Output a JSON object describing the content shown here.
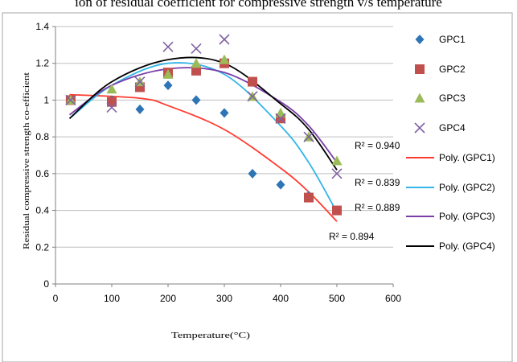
{
  "page": {
    "title": "ion of residual coefficient for compressive strength v/s temperature"
  },
  "chart_data": {
    "type": "scatter",
    "title": "",
    "xlabel": "Temperature(°C)",
    "ylabel": "Residual compressive strength co-efficient",
    "xlim": [
      0,
      600
    ],
    "ylim": [
      0,
      1.4
    ],
    "xticks": [
      0,
      100,
      200,
      300,
      400,
      500,
      600
    ],
    "yticks": [
      0,
      0.2,
      0.4,
      0.6,
      0.8,
      1,
      1.2,
      1.4
    ],
    "xtick_labels": [
      "0",
      "100",
      "200",
      "300",
      "400",
      "500",
      "600"
    ],
    "ytick_labels": [
      "0",
      "0.2",
      "0.4",
      "0.6",
      "0.8",
      "1",
      "1.2",
      "1.4"
    ],
    "grid": true,
    "legend_position": "right",
    "series": [
      {
        "name": "GPC1",
        "marker": "diamond",
        "color": "#2e75b6",
        "x": [
          27,
          100,
          150,
          200,
          250,
          300,
          350,
          400,
          450,
          500
        ],
        "y": [
          1.0,
          1.0,
          0.95,
          1.08,
          1.0,
          0.93,
          0.6,
          0.54,
          0.48,
          0.4
        ]
      },
      {
        "name": "GPC2",
        "marker": "square",
        "color": "#c0504d",
        "x": [
          27,
          100,
          150,
          200,
          250,
          300,
          350,
          400,
          450,
          500
        ],
        "y": [
          1.0,
          0.99,
          1.07,
          1.15,
          1.16,
          1.2,
          1.1,
          0.9,
          0.47,
          0.4
        ]
      },
      {
        "name": "GPC3",
        "marker": "triangle",
        "color": "#9bbb59",
        "x": [
          27,
          100,
          150,
          200,
          250,
          300,
          350,
          400,
          450,
          500
        ],
        "y": [
          1.0,
          1.06,
          1.1,
          1.14,
          1.2,
          1.22,
          1.02,
          0.93,
          0.8,
          0.67
        ]
      },
      {
        "name": "GPC4",
        "marker": "x",
        "color": "#8064a2",
        "x": [
          27,
          100,
          150,
          200,
          250,
          300,
          350,
          400,
          450,
          500
        ],
        "y": [
          1.0,
          0.96,
          1.1,
          1.29,
          1.28,
          1.33,
          1.02,
          0.9,
          0.8,
          0.6
        ]
      }
    ],
    "trendlines": [
      {
        "name": "Poly. (GPC1)",
        "color": "#ff3b30",
        "x": [
          25,
          150,
          200,
          300,
          400,
          450,
          500
        ],
        "y": [
          1.03,
          1.01,
          0.97,
          0.84,
          0.63,
          0.5,
          0.34
        ],
        "r2": "R² = 0.894"
      },
      {
        "name": "Poly. (GPC2)",
        "color": "#33b5e8",
        "x": [
          25,
          100,
          200,
          300,
          400,
          450,
          500
        ],
        "y": [
          0.9,
          1.08,
          1.2,
          1.14,
          0.86,
          0.66,
          0.39
        ],
        "r2": "R² = 0.839"
      },
      {
        "name": "Poly. (GPC3)",
        "color": "#7a3fa8",
        "x": [
          25,
          100,
          200,
          300,
          400,
          450,
          500
        ],
        "y": [
          0.92,
          1.08,
          1.17,
          1.15,
          0.99,
          0.86,
          0.66
        ],
        "r2": "R² = 0.889"
      },
      {
        "name": "Poly. (GPC4)",
        "color": "#000000",
        "x": [
          25,
          100,
          200,
          300,
          400,
          450,
          500
        ],
        "y": [
          0.9,
          1.1,
          1.22,
          1.2,
          0.98,
          0.84,
          0.62
        ],
        "r2": "R² = 0.940"
      }
    ]
  }
}
